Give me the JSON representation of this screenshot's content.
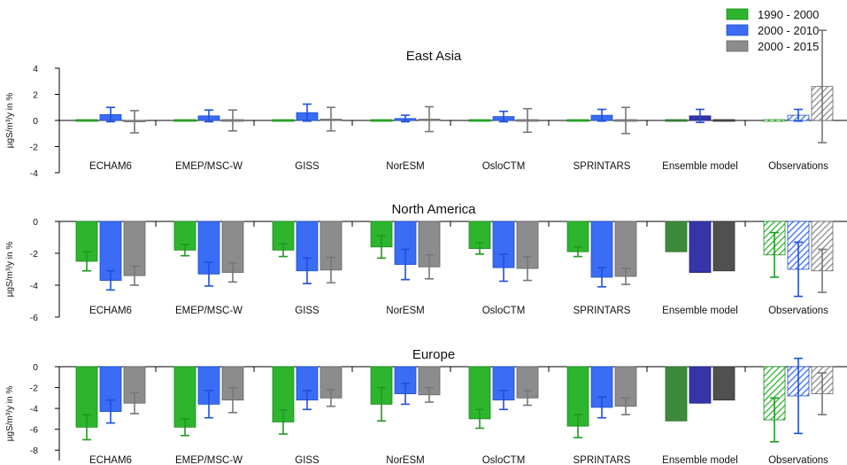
{
  "legend": {
    "placement": "top-right",
    "entries": [
      {
        "label": "1990 - 2000",
        "color": "#2db52d"
      },
      {
        "label": "2000 - 2010",
        "color": "#3a6cf5"
      },
      {
        "label": "2000 - 2015",
        "color": "#8c8c8c"
      }
    ]
  },
  "chart_data": [
    {
      "type": "bar",
      "title": "East Asia",
      "ylabel": "µgS/m³/y in %",
      "ylim": [
        -4,
        4
      ],
      "yticks": [
        -4,
        -2,
        0,
        2,
        4
      ],
      "grid": false,
      "categories": [
        "ECHAM6",
        "EMEP/MSC-W",
        "GISS",
        "NorESM",
        "OsloCTM",
        "SPRINTARS",
        "Ensemble model",
        "Observations"
      ],
      "series": [
        {
          "name": "1990 - 2000",
          "values": [
            0,
            0,
            0,
            0,
            0,
            0,
            0,
            0
          ],
          "errors": [
            0,
            0,
            0,
            0,
            0,
            0,
            0,
            0
          ]
        },
        {
          "name": "2000 - 2010",
          "values": [
            0.45,
            0.35,
            0.6,
            0.15,
            0.3,
            0.4,
            0.35,
            0.4
          ],
          "errors": [
            0.55,
            0.45,
            0.65,
            0.25,
            0.4,
            0.45,
            0.5,
            0.45
          ]
        },
        {
          "name": "2000 - 2015",
          "values": [
            -0.1,
            0,
            0.1,
            0.1,
            0,
            0,
            0,
            2.6
          ],
          "errors": [
            0.85,
            0.8,
            0.9,
            0.95,
            0.9,
            1.0,
            0,
            4.3
          ]
        }
      ]
    },
    {
      "type": "bar",
      "title": "North America",
      "ylabel": "µgS/m³/y in %",
      "ylim": [
        -6,
        0
      ],
      "yticks": [
        -6,
        -4,
        -2,
        0
      ],
      "grid": false,
      "categories": [
        "ECHAM6",
        "EMEP/MSC-W",
        "GISS",
        "NorESM",
        "OsloCTM",
        "SPRINTARS",
        "Ensemble model",
        "Observations"
      ],
      "series": [
        {
          "name": "1990 - 2000",
          "values": [
            -2.5,
            -1.8,
            -1.8,
            -1.6,
            -1.7,
            -1.9,
            -1.9,
            -2.1
          ],
          "errors": [
            0.6,
            0.35,
            0.4,
            0.7,
            0.35,
            0.3,
            0,
            1.4
          ]
        },
        {
          "name": "2000 - 2010",
          "values": [
            -3.7,
            -3.3,
            -3.1,
            -2.7,
            -2.9,
            -3.5,
            -3.2,
            -3.0
          ],
          "errors": [
            0.6,
            0.75,
            0.8,
            0.95,
            0.85,
            0.6,
            0,
            1.7
          ]
        },
        {
          "name": "2000 - 2015",
          "values": [
            -3.4,
            -3.2,
            -3.05,
            -2.85,
            -2.95,
            -3.45,
            -3.1,
            -3.1
          ],
          "errors": [
            0.6,
            0.6,
            0.8,
            0.75,
            0.75,
            0.5,
            0,
            1.35
          ]
        }
      ]
    },
    {
      "type": "bar",
      "title": "Europe",
      "ylabel": "µgS/m³/y in %",
      "ylim": [
        -9,
        0
      ],
      "yticks": [
        -8,
        -6,
        -4,
        -2,
        0
      ],
      "grid": false,
      "categories": [
        "ECHAM6",
        "EMEP/MSC-W",
        "GISS",
        "NorESM",
        "OsloCTM",
        "SPRINTARS",
        "Ensemble model",
        "Observations"
      ],
      "series": [
        {
          "name": "1990 - 2000",
          "values": [
            -5.8,
            -5.8,
            -5.3,
            -3.6,
            -5.0,
            -5.7,
            -5.2,
            -5.1
          ],
          "errors": [
            1.2,
            0.8,
            1.15,
            1.6,
            0.9,
            1.1,
            0,
            2.1
          ]
        },
        {
          "name": "2000 - 2010",
          "values": [
            -4.3,
            -3.6,
            -3.2,
            -2.6,
            -3.2,
            -3.9,
            -3.5,
            -2.8
          ],
          "errors": [
            1.1,
            1.3,
            0.9,
            1.0,
            0.9,
            1.0,
            0,
            3.6
          ]
        },
        {
          "name": "2000 - 2015",
          "values": [
            -3.5,
            -3.2,
            -3.0,
            -2.7,
            -3.0,
            -3.8,
            -3.2,
            -2.6
          ],
          "errors": [
            1.0,
            1.2,
            0.8,
            0.7,
            0.7,
            0.8,
            0,
            2.0
          ]
        }
      ]
    }
  ]
}
